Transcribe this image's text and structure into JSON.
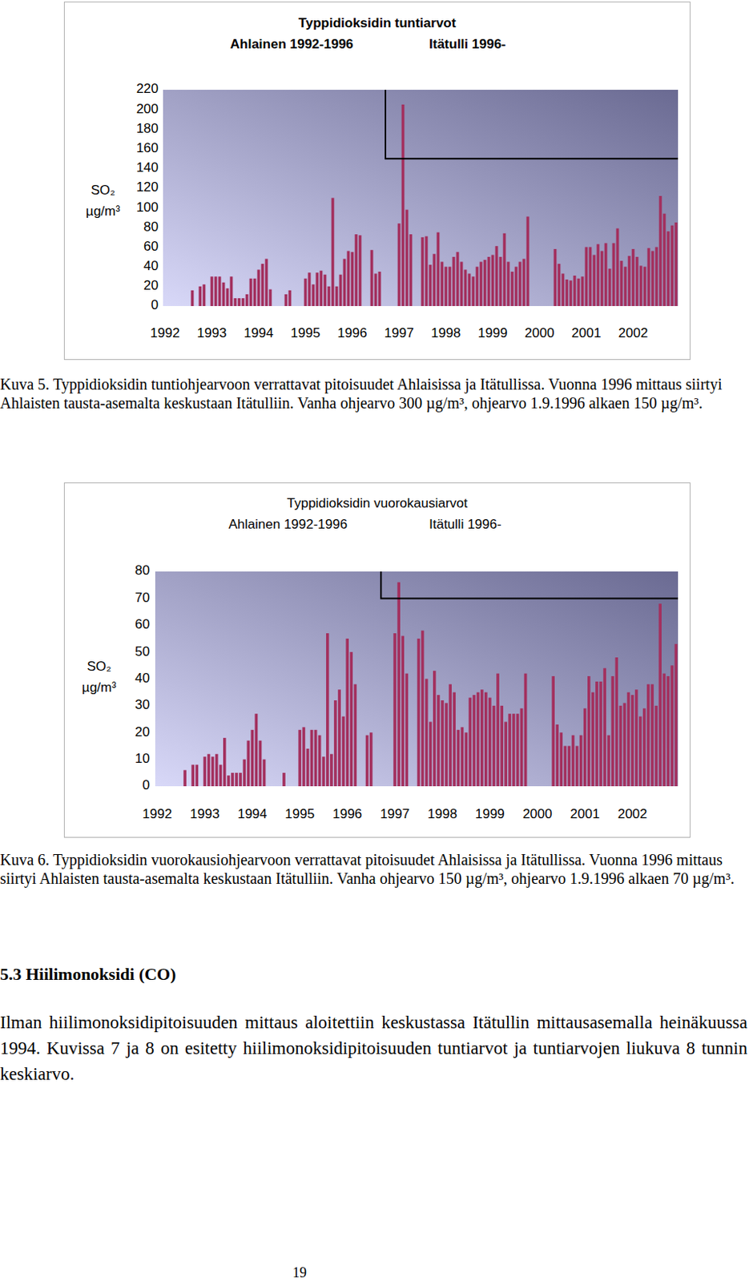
{
  "chart_data": [
    {
      "type": "bar",
      "title": "Typpidioksidin tuntiarvot",
      "subtitle": [
        "Ahlainen 1992-1996",
        "Itätulli 1996-"
      ],
      "y_label": [
        "SO₂",
        "µg/m³"
      ],
      "categories": [
        "1992",
        null,
        null,
        null,
        null,
        null,
        null,
        null,
        null,
        null,
        null,
        null,
        "1993",
        null,
        null,
        null,
        null,
        null,
        null,
        null,
        null,
        null,
        null,
        null,
        "1994",
        null,
        null,
        null,
        null,
        null,
        null,
        null,
        null,
        null,
        null,
        null,
        "1995",
        null,
        null,
        null,
        null,
        null,
        null,
        null,
        null,
        null,
        null,
        null,
        "1996",
        null,
        null,
        null,
        null,
        null,
        null,
        null,
        null,
        null,
        null,
        null,
        "1997",
        null,
        null,
        null,
        null,
        null,
        null,
        null,
        null,
        null,
        null,
        null,
        "1998",
        null,
        null,
        null,
        null,
        null,
        null,
        null,
        null,
        null,
        null,
        null,
        "1999",
        null,
        null,
        null,
        null,
        null,
        null,
        null,
        null,
        null,
        null,
        null,
        "2000",
        null,
        null,
        null,
        null,
        null,
        null,
        null,
        null,
        null,
        null,
        null,
        "2001",
        null,
        null,
        null,
        null,
        null,
        null,
        null,
        null,
        null,
        null,
        null,
        "2002",
        null,
        null,
        null,
        null,
        null,
        null,
        null,
        null,
        null,
        null,
        null
      ],
      "series": [
        {
          "color": "#a3305e",
          "values": [
            null,
            null,
            null,
            null,
            null,
            null,
            null,
            16,
            null,
            20,
            22,
            null,
            30,
            30,
            30,
            24,
            18,
            30,
            8,
            8,
            8,
            12,
            28,
            28,
            37,
            43,
            48,
            17,
            null,
            null,
            null,
            12,
            16,
            null,
            null,
            null,
            28,
            34,
            22,
            34,
            36,
            32,
            20,
            110,
            20,
            32,
            48,
            56,
            55,
            73,
            72,
            null,
            null,
            57,
            33,
            35,
            null,
            null,
            null,
            null,
            84,
            205,
            98,
            73,
            null,
            null,
            70,
            71,
            42,
            53,
            75,
            45,
            40,
            40,
            50,
            55,
            45,
            37,
            33,
            30,
            40,
            45,
            47,
            50,
            52,
            61,
            50,
            74,
            45,
            35,
            40,
            45,
            48,
            91,
            null,
            null,
            null,
            null,
            null,
            null,
            58,
            43,
            33,
            27,
            26,
            31,
            28,
            30,
            60,
            60,
            52,
            63,
            56,
            64,
            38,
            64,
            79,
            46,
            40,
            51,
            58,
            50,
            41,
            40,
            59,
            56,
            60,
            112,
            94,
            76,
            82,
            85
          ]
        },
        {
          "type": "line",
          "line_style": "step",
          "color": "#000000",
          "values": [
            null,
            null,
            null,
            null,
            null,
            null,
            null,
            null,
            null,
            null,
            null,
            null,
            null,
            null,
            null,
            null,
            null,
            null,
            null,
            null,
            null,
            null,
            null,
            null,
            null,
            null,
            null,
            null,
            null,
            null,
            null,
            null,
            null,
            null,
            null,
            null,
            null,
            null,
            null,
            null,
            null,
            null,
            null,
            null,
            null,
            null,
            null,
            null,
            null,
            null,
            null,
            null,
            null,
            null,
            null,
            null,
            null,
            150,
            150,
            150,
            150,
            150,
            150,
            150,
            150,
            150,
            150,
            150,
            150,
            150,
            150,
            150,
            150,
            150,
            150,
            150,
            150,
            150,
            150,
            150,
            150,
            150,
            150,
            150,
            150,
            150,
            150,
            150,
            150,
            150,
            150,
            150,
            150,
            150,
            150,
            150,
            150,
            150,
            150,
            150,
            150,
            150,
            150,
            150,
            150,
            150,
            150,
            150,
            150,
            150,
            150,
            150,
            150,
            150,
            150,
            150,
            150,
            150,
            150,
            150,
            150,
            150,
            150,
            150,
            150,
            150,
            150,
            150,
            150,
            150,
            150,
            150
          ]
        }
      ],
      "ylim": [
        0,
        220
      ],
      "yticks": [
        0,
        20,
        40,
        60,
        80,
        100,
        120,
        140,
        160,
        180,
        200,
        220
      ],
      "grid": false
    },
    {
      "type": "bar",
      "title": "Typpidioksidin vuorokausiarvot",
      "subtitle": [
        "Ahlainen 1992-1996",
        "Itätulli 1996-"
      ],
      "y_label": [
        "SO₂",
        "µg/m³"
      ],
      "categories": [
        "1992",
        null,
        null,
        null,
        null,
        null,
        null,
        null,
        null,
        null,
        null,
        null,
        "1993",
        null,
        null,
        null,
        null,
        null,
        null,
        null,
        null,
        null,
        null,
        null,
        "1994",
        null,
        null,
        null,
        null,
        null,
        null,
        null,
        null,
        null,
        null,
        null,
        "1995",
        null,
        null,
        null,
        null,
        null,
        null,
        null,
        null,
        null,
        null,
        null,
        "1996",
        null,
        null,
        null,
        null,
        null,
        null,
        null,
        null,
        null,
        null,
        null,
        "1997",
        null,
        null,
        null,
        null,
        null,
        null,
        null,
        null,
        null,
        null,
        null,
        "1998",
        null,
        null,
        null,
        null,
        null,
        null,
        null,
        null,
        null,
        null,
        null,
        "1999",
        null,
        null,
        null,
        null,
        null,
        null,
        null,
        null,
        null,
        null,
        null,
        "2000",
        null,
        null,
        null,
        null,
        null,
        null,
        null,
        null,
        null,
        null,
        null,
        "2001",
        null,
        null,
        null,
        null,
        null,
        null,
        null,
        null,
        null,
        null,
        null,
        "2002",
        null,
        null,
        null,
        null,
        null,
        null,
        null,
        null,
        null,
        null,
        null
      ],
      "series": [
        {
          "color": "#a3305e",
          "values": [
            null,
            null,
            null,
            null,
            null,
            null,
            null,
            6,
            null,
            8,
            8,
            null,
            11,
            12,
            11,
            12,
            8,
            18,
            4,
            5,
            5,
            5,
            10,
            17,
            21,
            27,
            17,
            10,
            null,
            null,
            null,
            null,
            5,
            null,
            null,
            null,
            21,
            22,
            14,
            21,
            21,
            19,
            11,
            57,
            12,
            32,
            36,
            26,
            55,
            50,
            38,
            null,
            null,
            19,
            20,
            null,
            null,
            null,
            null,
            null,
            57,
            76,
            56,
            42,
            null,
            null,
            55,
            58,
            40,
            24,
            43,
            34,
            32,
            31,
            38,
            35,
            21,
            22,
            20,
            33,
            34,
            35,
            36,
            35,
            33,
            30,
            42,
            30,
            24,
            27,
            27,
            27,
            29,
            42,
            null,
            null,
            null,
            null,
            null,
            null,
            41,
            23,
            20,
            15,
            15,
            19,
            15,
            19,
            29,
            41,
            35,
            39,
            39,
            44,
            19,
            41,
            48,
            30,
            31,
            35,
            34,
            36,
            26,
            29,
            38,
            38,
            30,
            68,
            42,
            41,
            45,
            53
          ]
        },
        {
          "type": "line",
          "line_style": "step",
          "color": "#000000",
          "values": [
            null,
            null,
            null,
            null,
            null,
            null,
            null,
            null,
            null,
            null,
            null,
            null,
            null,
            null,
            null,
            null,
            null,
            null,
            null,
            null,
            null,
            null,
            null,
            null,
            null,
            null,
            null,
            null,
            null,
            null,
            null,
            null,
            null,
            null,
            null,
            null,
            null,
            null,
            null,
            null,
            null,
            null,
            null,
            null,
            null,
            null,
            null,
            null,
            null,
            null,
            null,
            null,
            null,
            null,
            null,
            null,
            null,
            70,
            70,
            70,
            70,
            70,
            70,
            70,
            70,
            70,
            70,
            70,
            70,
            70,
            70,
            70,
            70,
            70,
            70,
            70,
            70,
            70,
            70,
            70,
            70,
            70,
            70,
            70,
            70,
            70,
            70,
            70,
            70,
            70,
            70,
            70,
            70,
            70,
            70,
            70,
            70,
            70,
            70,
            70,
            70,
            70,
            70,
            70,
            70,
            70,
            70,
            70,
            70,
            70,
            70,
            70,
            70,
            70,
            70,
            70,
            70,
            70,
            70,
            70,
            70,
            70,
            70,
            70,
            70,
            70,
            70,
            70,
            70,
            70,
            70,
            70
          ]
        }
      ],
      "ylim": [
        0,
        80
      ],
      "yticks": [
        0,
        10,
        20,
        30,
        40,
        50,
        60,
        70,
        80
      ],
      "grid": false
    }
  ],
  "document": {
    "captions": [
      "Kuva 5. Typpidioksidin tuntiohjearvoon verrattavat pitoisuudet Ahlaisissa ja Itätullissa. Vuonna 1996 mittaus siirtyi Ahlaisten tausta-asemalta keskustaan Itätulliin. Vanha ohjearvo 300 µg/m³, ohjearvo 1.9.1996 alkaen 150 µg/m³.",
      "Kuva 6. Typpidioksidin vuorokausiohjearvoon verrattavat pitoisuudet Ahlaisissa ja Itätullissa. Vuonna 1996 mittaus siirtyi Ahlaisten tausta-asemalta keskustaan Itätulliin. Vanha ohjearvo 150 µg/m³, ohjearvo 1.9.1996 alkaen 70 µg/m³."
    ],
    "heading": "5.3 Hiilimonoksidi (CO)",
    "paragraph": "Ilman hiilimonoksidipitoisuuden mittaus aloitettiin keskustassa Itätullin mittausasemalla heinäkuussa 1994. Kuvissa 7 ja 8 on esitetty hiilimonoksidipitoisuuden tuntiarvot ja tuntiarvojen liukuva 8 tunnin keskiarvo.",
    "page_number": 19
  }
}
